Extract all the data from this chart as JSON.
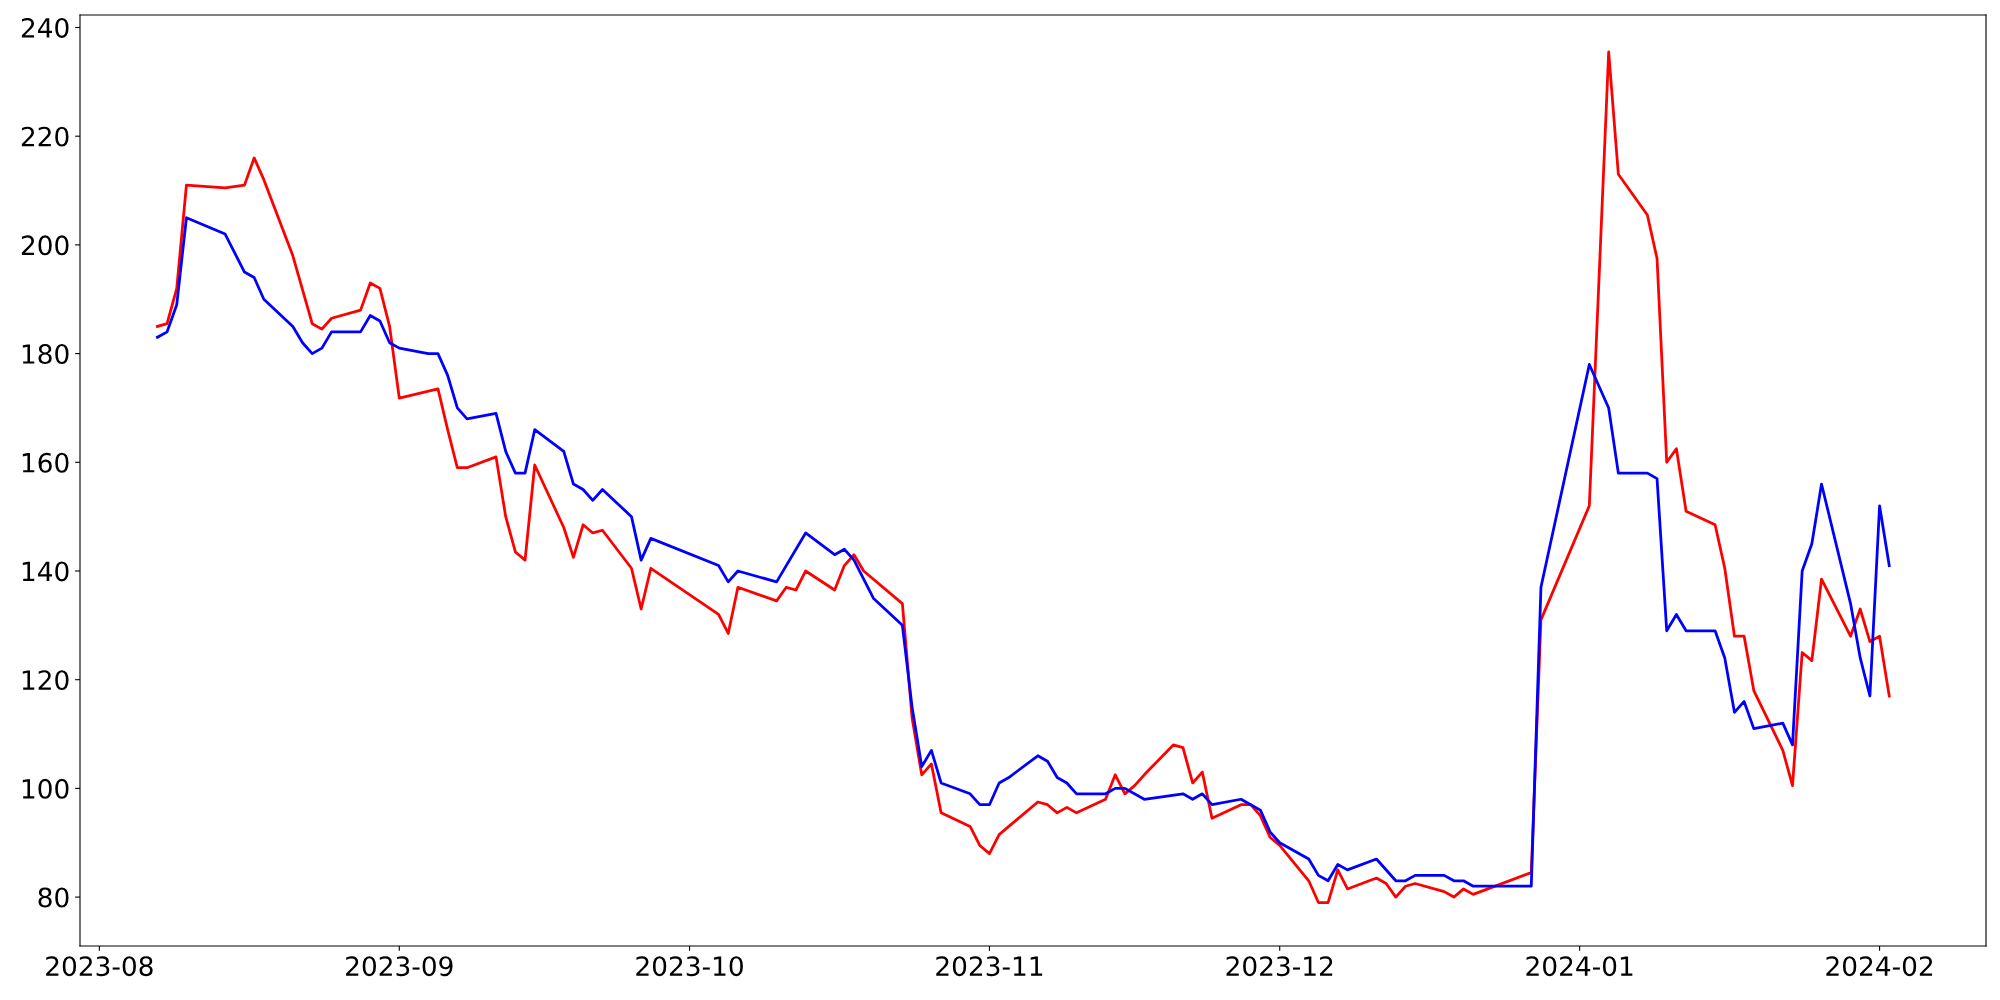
{
  "chart_data": {
    "type": "line",
    "series": [
      {
        "color": "#ff0000",
        "x": [
          "2023-08-07",
          "2023-08-08",
          "2023-08-09",
          "2023-08-10",
          "2023-08-14",
          "2023-08-16",
          "2023-08-17",
          "2023-08-18",
          "2023-08-21",
          "2023-08-23",
          "2023-08-24",
          "2023-08-25",
          "2023-08-28",
          "2023-08-29",
          "2023-08-30",
          "2023-08-31",
          "2023-09-01",
          "2023-09-05",
          "2023-09-06",
          "2023-09-07",
          "2023-09-08",
          "2023-09-11",
          "2023-09-12",
          "2023-09-13",
          "2023-09-14",
          "2023-09-15",
          "2023-09-18",
          "2023-09-19",
          "2023-09-20",
          "2023-09-21",
          "2023-09-22",
          "2023-09-25",
          "2023-09-26",
          "2023-09-27",
          "2023-10-04",
          "2023-10-05",
          "2023-10-06",
          "2023-10-10",
          "2023-10-11",
          "2023-10-12",
          "2023-10-13",
          "2023-10-16",
          "2023-10-17",
          "2023-10-18",
          "2023-10-19",
          "2023-10-23",
          "2023-10-24",
          "2023-10-25",
          "2023-10-26",
          "2023-10-27",
          "2023-10-30",
          "2023-10-31",
          "2023-11-01",
          "2023-11-02",
          "2023-11-03",
          "2023-11-06",
          "2023-11-07",
          "2023-11-08",
          "2023-11-09",
          "2023-11-10",
          "2023-11-13",
          "2023-11-14",
          "2023-11-15",
          "2023-11-16",
          "2023-11-17",
          "2023-11-20",
          "2023-11-21",
          "2023-11-22",
          "2023-11-23",
          "2023-11-24",
          "2023-11-27",
          "2023-11-28",
          "2023-11-29",
          "2023-11-30",
          "2023-12-01",
          "2023-12-04",
          "2023-12-05",
          "2023-12-06",
          "2023-12-07",
          "2023-12-08",
          "2023-12-11",
          "2023-12-12",
          "2023-12-13",
          "2023-12-14",
          "2023-12-15",
          "2023-12-18",
          "2023-12-19",
          "2023-12-20",
          "2023-12-21",
          "2023-12-27",
          "2023-12-28",
          "2024-01-02",
          "2024-01-04",
          "2024-01-05",
          "2024-01-08",
          "2024-01-09",
          "2024-01-10",
          "2024-01-11",
          "2024-01-12",
          "2024-01-15",
          "2024-01-16",
          "2024-01-17",
          "2024-01-18",
          "2024-01-19",
          "2024-01-22",
          "2024-01-23",
          "2024-01-24",
          "2024-01-25",
          "2024-01-26",
          "2024-01-29",
          "2024-01-30",
          "2024-01-31",
          "2024-02-01",
          "2024-02-02"
        ],
        "values": [
          185,
          185.5,
          192,
          211,
          210.5,
          211,
          216,
          212,
          198,
          185.5,
          184.5,
          186.5,
          188,
          193,
          192,
          185,
          171.8,
          173.5,
          166,
          159,
          159,
          161,
          150,
          143.5,
          142,
          159.5,
          148,
          142.5,
          148.5,
          147,
          147.5,
          140.5,
          133,
          140.5,
          132,
          128.5,
          137,
          134.5,
          137,
          136.5,
          140,
          136.5,
          141,
          143,
          140,
          134,
          113,
          102.5,
          104.5,
          95.5,
          93,
          89.5,
          88,
          91.5,
          93,
          97.5,
          97,
          95.5,
          96.5,
          95.5,
          98,
          102.5,
          99,
          100.5,
          102.5,
          108,
          107.5,
          101,
          103,
          94.5,
          97,
          97,
          95,
          91,
          89.5,
          83,
          79,
          79,
          85,
          81.5,
          83.5,
          82.5,
          80,
          82,
          82.5,
          81,
          80,
          81.5,
          80.5,
          84.5,
          131,
          152,
          235.5,
          213,
          205.5,
          197.5,
          160,
          162.5,
          151,
          148.5,
          140.5,
          128,
          128,
          118,
          107,
          100.5,
          125,
          123.5,
          138.5,
          128,
          133,
          127,
          128,
          117
        ]
      },
      {
        "color": "#0000ff",
        "x": [
          "2023-08-07",
          "2023-08-08",
          "2023-08-09",
          "2023-08-10",
          "2023-08-14",
          "2023-08-16",
          "2023-08-17",
          "2023-08-18",
          "2023-08-21",
          "2023-08-22",
          "2023-08-23",
          "2023-08-24",
          "2023-08-25",
          "2023-08-28",
          "2023-08-29",
          "2023-08-30",
          "2023-08-31",
          "2023-09-01",
          "2023-09-04",
          "2023-09-05",
          "2023-09-06",
          "2023-09-07",
          "2023-09-08",
          "2023-09-11",
          "2023-09-12",
          "2023-09-13",
          "2023-09-14",
          "2023-09-15",
          "2023-09-18",
          "2023-09-19",
          "2023-09-20",
          "2023-09-21",
          "2023-09-22",
          "2023-09-25",
          "2023-09-26",
          "2023-09-27",
          "2023-10-04",
          "2023-10-05",
          "2023-10-06",
          "2023-10-10",
          "2023-10-13",
          "2023-10-16",
          "2023-10-17",
          "2023-10-18",
          "2023-10-20",
          "2023-10-23",
          "2023-10-24",
          "2023-10-25",
          "2023-10-26",
          "2023-10-27",
          "2023-10-30",
          "2023-10-31",
          "2023-11-01",
          "2023-11-02",
          "2023-11-03",
          "2023-11-06",
          "2023-11-07",
          "2023-11-08",
          "2023-11-09",
          "2023-11-10",
          "2023-11-13",
          "2023-11-14",
          "2023-11-15",
          "2023-11-17",
          "2023-11-21",
          "2023-11-22",
          "2023-11-23",
          "2023-11-24",
          "2023-11-27",
          "2023-11-29",
          "2023-11-30",
          "2023-12-01",
          "2023-12-04",
          "2023-12-05",
          "2023-12-06",
          "2023-12-07",
          "2023-12-08",
          "2023-12-11",
          "2023-12-13",
          "2023-12-14",
          "2023-12-15",
          "2023-12-18",
          "2023-12-19",
          "2023-12-20",
          "2023-12-21",
          "2023-12-27",
          "2023-12-28",
          "2024-01-02",
          "2024-01-04",
          "2024-01-05",
          "2024-01-08",
          "2024-01-09",
          "2024-01-10",
          "2024-01-11",
          "2024-01-12",
          "2024-01-15",
          "2024-01-16",
          "2024-01-17",
          "2024-01-18",
          "2024-01-19",
          "2024-01-22",
          "2024-01-23",
          "2024-01-24",
          "2024-01-25",
          "2024-01-26",
          "2024-01-29",
          "2024-01-30",
          "2024-01-31",
          "2024-02-01",
          "2024-02-02"
        ],
        "values": [
          183,
          184,
          189,
          205,
          202,
          195,
          194,
          190,
          185,
          182,
          180,
          181,
          184,
          184,
          187,
          186,
          182,
          181,
          180,
          180,
          176,
          170,
          168,
          169,
          162,
          158,
          158,
          166,
          162,
          156,
          155,
          153,
          155,
          150,
          142,
          146,
          141,
          138,
          140,
          138,
          147,
          143,
          144,
          142,
          135,
          130,
          115,
          104,
          107,
          101,
          99,
          97,
          97,
          101,
          102,
          106,
          105,
          102,
          101,
          99,
          99,
          100,
          100,
          98,
          99,
          98,
          99,
          97,
          98,
          96,
          92,
          90,
          87,
          84,
          83,
          86,
          85,
          87,
          83,
          83,
          84,
          84,
          83,
          83,
          82,
          82,
          137,
          178,
          170,
          158,
          158,
          157,
          129,
          132,
          129,
          129,
          124,
          114,
          116,
          111,
          112,
          108,
          140,
          145,
          156,
          134,
          124,
          117,
          152,
          141
        ]
      }
    ],
    "xlim": [
      "2023-07-30",
      "2024-02-12"
    ],
    "xticks": [
      "2023-08",
      "2023-09",
      "2023-10",
      "2023-11",
      "2023-12",
      "2024-01",
      "2024-02"
    ],
    "ylim": [
      71,
      242.3
    ],
    "yticks": [
      80,
      100,
      120,
      140,
      160,
      180,
      200,
      220,
      240
    ],
    "grid": false,
    "marker": "none",
    "line_style": "solid"
  }
}
